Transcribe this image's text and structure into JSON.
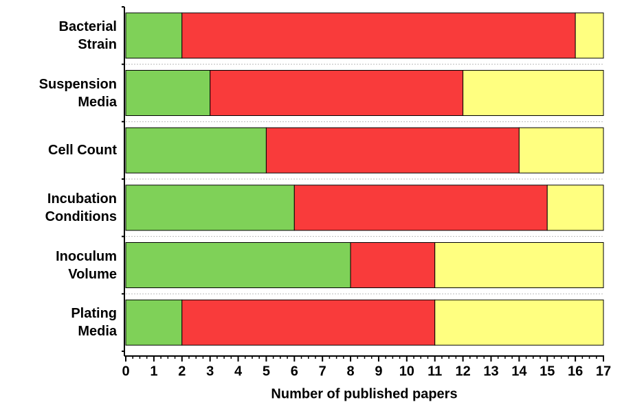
{
  "chart_data": {
    "type": "stacked_barh",
    "categories": [
      "Bacterial\nStrain",
      "Suspension\nMedia",
      "Cell Count",
      "Incubation\nConditions",
      "Inoculum\nVolume",
      "Plating\nMedia"
    ],
    "series": [
      {
        "color": "#7fd158",
        "values": [
          2,
          3,
          5,
          6,
          8,
          2
        ]
      },
      {
        "color": "#f93b3b",
        "values": [
          14,
          9,
          9,
          9,
          3,
          9
        ]
      },
      {
        "color": "#ffff80",
        "values": [
          1,
          5,
          3,
          2,
          6,
          6
        ]
      }
    ],
    "xlabel": "Number of published papers",
    "xlim": [
      0,
      17
    ],
    "xticks": [
      0,
      1,
      2,
      3,
      4,
      5,
      6,
      7,
      8,
      9,
      10,
      11,
      12,
      13,
      14,
      15,
      16,
      17
    ]
  }
}
